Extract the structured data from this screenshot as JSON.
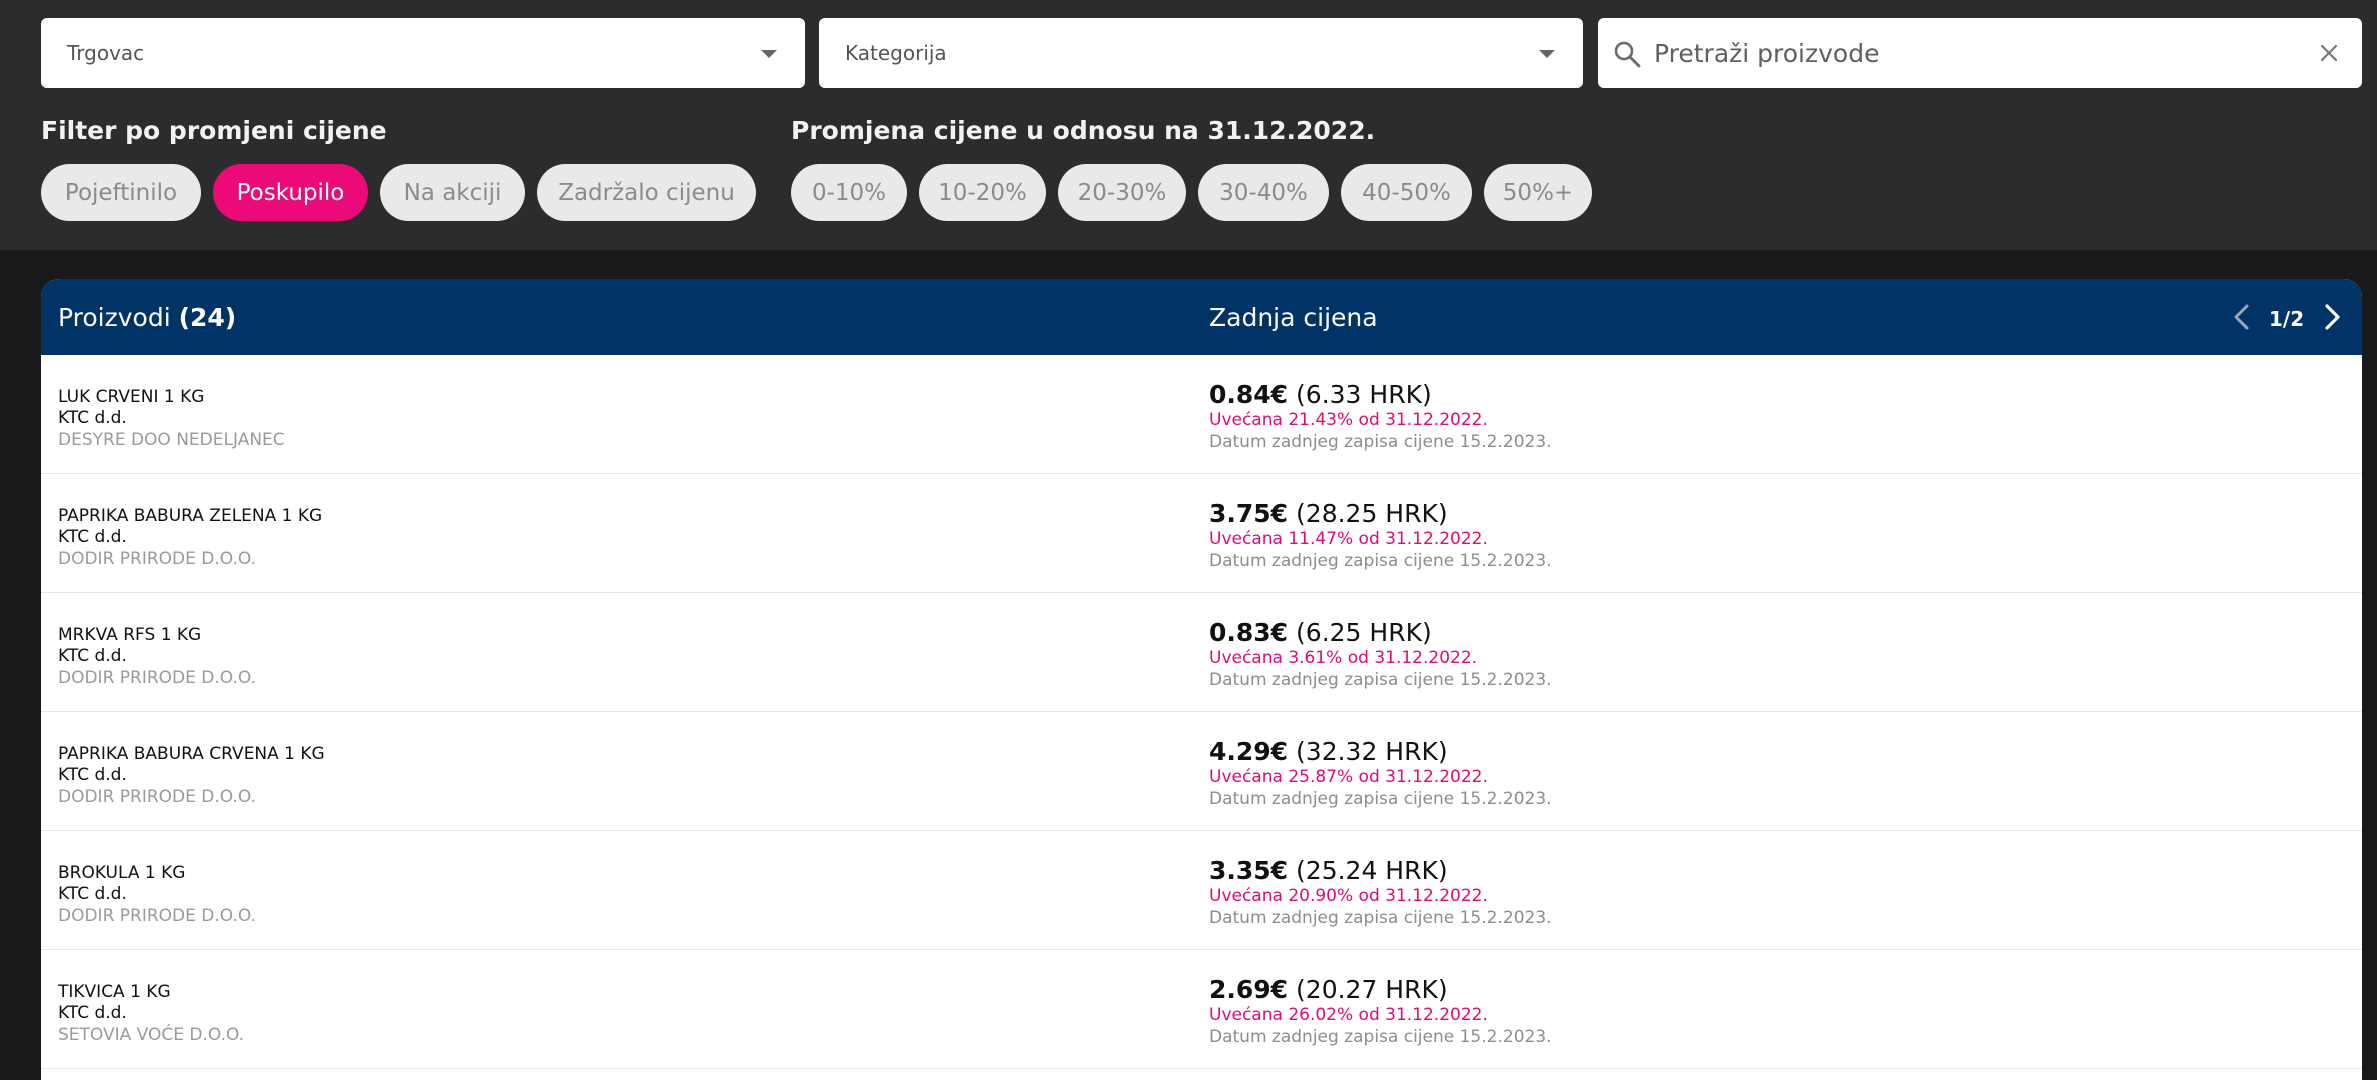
{
  "filters": {
    "merchant_select": {
      "value": "Trgovac"
    },
    "category_select": {
      "value": "Kategorija"
    },
    "search": {
      "placeholder": "Pretraži proizvode"
    },
    "price_change_label": "Filter po promjeni cijene",
    "price_change_options": [
      {
        "label": "Pojeftinilo",
        "selected": false
      },
      {
        "label": "Poskupilo",
        "selected": true
      },
      {
        "label": "Na akciji",
        "selected": false
      },
      {
        "label": "Zadržalo cijenu",
        "selected": false
      }
    ],
    "relative_change_label": "Promjena cijene u odnosu na 31.12.2022.",
    "relative_change_options": [
      "0-10%",
      "10-20%",
      "20-30%",
      "30-40%",
      "40-50%",
      "50%+"
    ]
  },
  "table": {
    "products_label": "Proizvodi",
    "products_count": "(24)",
    "price_header": "Zadnja cijena",
    "pagination": "1/2",
    "rows": [
      {
        "name": "LUK CRVENI 1 KG",
        "seller": "KTC d.d.",
        "supplier": "DESYRE DOO NEDELJANEC",
        "price_eur": "0.84€",
        "price_hrk": "(6.33 HRK)",
        "change": "Uvećana 21.43% od 31.12.2022.",
        "date": "Datum zadnjeg zapisa cijene 15.2.2023."
      },
      {
        "name": "PAPRIKA BABURA ZELENA 1 KG",
        "seller": "KTC d.d.",
        "supplier": "DODIR PRIRODE D.O.O.",
        "price_eur": "3.75€",
        "price_hrk": "(28.25 HRK)",
        "change": "Uvećana 11.47% od 31.12.2022.",
        "date": "Datum zadnjeg zapisa cijene 15.2.2023."
      },
      {
        "name": "MRKVA RFS 1 KG",
        "seller": "KTC d.d.",
        "supplier": "DODIR PRIRODE D.O.O.",
        "price_eur": "0.83€",
        "price_hrk": "(6.25 HRK)",
        "change": "Uvećana 3.61% od 31.12.2022.",
        "date": "Datum zadnjeg zapisa cijene 15.2.2023."
      },
      {
        "name": "PAPRIKA BABURA CRVENA 1 KG",
        "seller": "KTC d.d.",
        "supplier": "DODIR PRIRODE D.O.O.",
        "price_eur": "4.29€",
        "price_hrk": "(32.32 HRK)",
        "change": "Uvećana 25.87% od 31.12.2022.",
        "date": "Datum zadnjeg zapisa cijene 15.2.2023."
      },
      {
        "name": "BROKULA 1 KG",
        "seller": "KTC d.d.",
        "supplier": "DODIR PRIRODE D.O.O.",
        "price_eur": "3.35€",
        "price_hrk": "(25.24 HRK)",
        "change": "Uvećana 20.90% od 31.12.2022.",
        "date": "Datum zadnjeg zapisa cijene 15.2.2023."
      },
      {
        "name": "TIKVICA 1 KG",
        "seller": "KTC d.d.",
        "supplier": "SETOVIA VOĆE D.O.O.",
        "price_eur": "2.69€",
        "price_hrk": "(20.27 HRK)",
        "change": "Uvećana 26.02% od 31.12.2022.",
        "date": "Datum zadnjeg zapisa cijene 15.2.2023."
      }
    ]
  },
  "colors": {
    "accent": "#ec0a79",
    "header_bar": "#003366",
    "top_panel": "#2c2c2e"
  }
}
